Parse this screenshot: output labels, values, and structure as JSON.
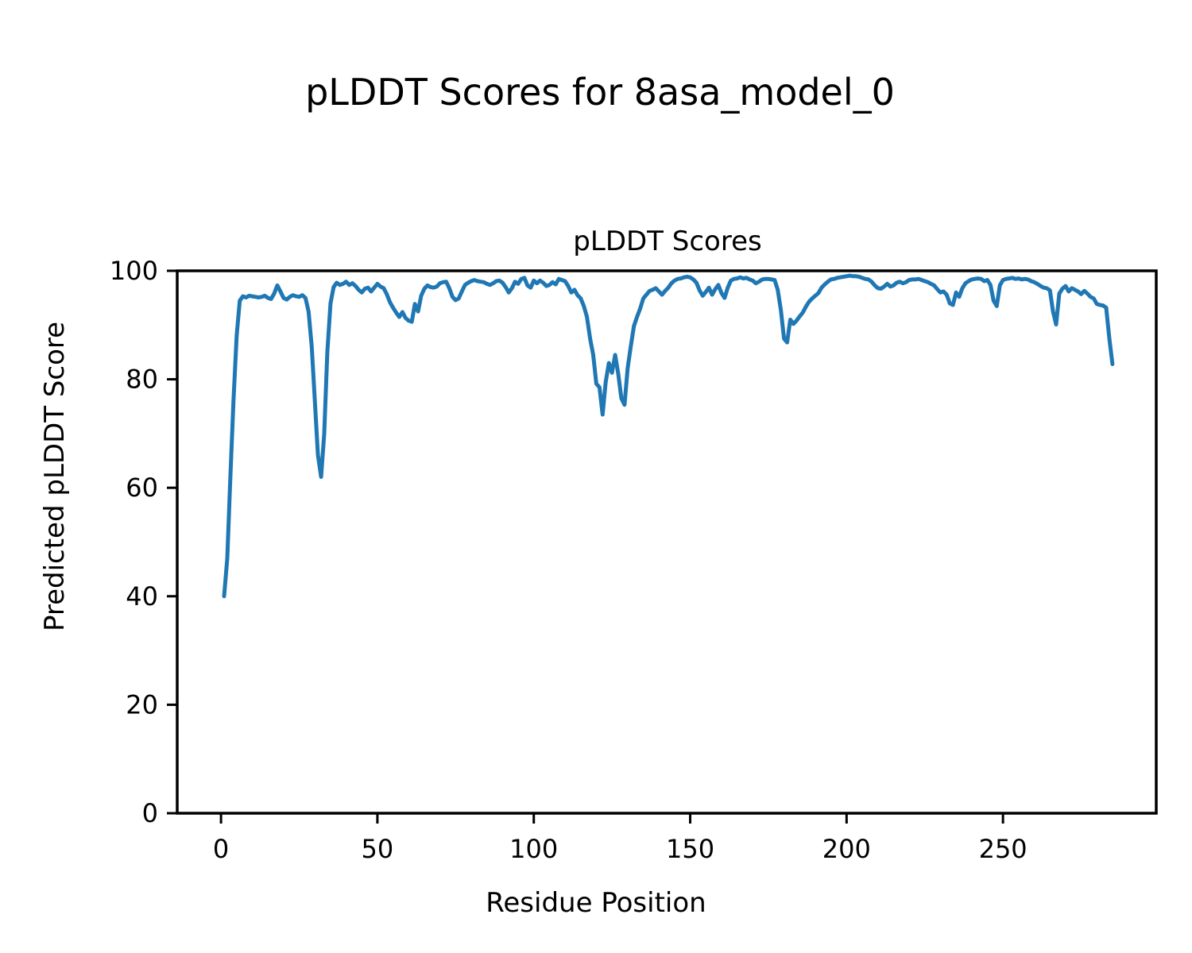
{
  "chart_data": {
    "type": "line",
    "figure_title": "pLDDT Scores for 8asa_model_0",
    "title": "pLDDT Scores",
    "xlabel": "Residue Position",
    "ylabel": "Predicted pLDDT Score",
    "x_ticks": [
      0,
      50,
      100,
      150,
      200,
      250
    ],
    "y_ticks": [
      0,
      20,
      40,
      60,
      80,
      100
    ],
    "xlim": [
      -14,
      299
    ],
    "ylim": [
      0,
      100
    ],
    "grid": false,
    "legend": "none",
    "line_color": "#1f77b4",
    "series": [
      {
        "name": "pLDDT",
        "points": [
          [
            1,
            40
          ],
          [
            2,
            47
          ],
          [
            3,
            62
          ],
          [
            4,
            76
          ],
          [
            5,
            88
          ],
          [
            6,
            94.5
          ],
          [
            7,
            95.3
          ],
          [
            8,
            95.1
          ],
          [
            9,
            95.4
          ],
          [
            10,
            95.3
          ],
          [
            11,
            95.2
          ],
          [
            12,
            95.1
          ],
          [
            13,
            95.2
          ],
          [
            14,
            95.4
          ],
          [
            15,
            95.0
          ],
          [
            16,
            94.8
          ],
          [
            17,
            95.8
          ],
          [
            18,
            97.3
          ],
          [
            19,
            96.2
          ],
          [
            20,
            95.0
          ],
          [
            21,
            94.7
          ],
          [
            22,
            95.2
          ],
          [
            23,
            95.5
          ],
          [
            24,
            95.3
          ],
          [
            25,
            95.2
          ],
          [
            26,
            95.5
          ],
          [
            27,
            95.0
          ],
          [
            28,
            92.5
          ],
          [
            29,
            86
          ],
          [
            30,
            76
          ],
          [
            31,
            66
          ],
          [
            32,
            62
          ],
          [
            33,
            70
          ],
          [
            34,
            85
          ],
          [
            35,
            94
          ],
          [
            36,
            97.0
          ],
          [
            37,
            97.8
          ],
          [
            38,
            97.4
          ],
          [
            39,
            97.6
          ],
          [
            40,
            98.0
          ],
          [
            41,
            97.4
          ],
          [
            42,
            97.7
          ],
          [
            43,
            97.2
          ],
          [
            44,
            96.5
          ],
          [
            45,
            96.0
          ],
          [
            46,
            96.7
          ],
          [
            47,
            96.9
          ],
          [
            48,
            96.2
          ],
          [
            49,
            96.9
          ],
          [
            50,
            97.6
          ],
          [
            51,
            97.1
          ],
          [
            52,
            96.8
          ],
          [
            53,
            95.7
          ],
          [
            54,
            94.2
          ],
          [
            55,
            93.2
          ],
          [
            56,
            92.3
          ],
          [
            57,
            91.5
          ],
          [
            58,
            92.4
          ],
          [
            59,
            91.3
          ],
          [
            60,
            90.8
          ],
          [
            61,
            90.6
          ],
          [
            62,
            93.9
          ],
          [
            63,
            92.5
          ],
          [
            64,
            95.4
          ],
          [
            65,
            96.7
          ],
          [
            66,
            97.3
          ],
          [
            67,
            97.0
          ],
          [
            68,
            96.9
          ],
          [
            69,
            97.1
          ],
          [
            70,
            97.7
          ],
          [
            71,
            97.9
          ],
          [
            72,
            98.0
          ],
          [
            73,
            96.8
          ],
          [
            74,
            95.2
          ],
          [
            75,
            94.6
          ],
          [
            76,
            94.9
          ],
          [
            77,
            96.2
          ],
          [
            78,
            97.4
          ],
          [
            79,
            97.8
          ],
          [
            80,
            98.1
          ],
          [
            81,
            98.3
          ],
          [
            82,
            98.1
          ],
          [
            83,
            98.0
          ],
          [
            84,
            97.9
          ],
          [
            85,
            97.6
          ],
          [
            86,
            97.4
          ],
          [
            87,
            97.7
          ],
          [
            88,
            98.1
          ],
          [
            89,
            98.2
          ],
          [
            90,
            97.8
          ],
          [
            91,
            97.0
          ],
          [
            92,
            96.0
          ],
          [
            93,
            96.8
          ],
          [
            94,
            98.0
          ],
          [
            95,
            97.6
          ],
          [
            96,
            98.5
          ],
          [
            97,
            98.7
          ],
          [
            98,
            97.3
          ],
          [
            99,
            96.9
          ],
          [
            100,
            98.2
          ],
          [
            101,
            97.7
          ],
          [
            102,
            98.2
          ],
          [
            103,
            97.8
          ],
          [
            104,
            97.2
          ],
          [
            105,
            97.4
          ],
          [
            106,
            97.9
          ],
          [
            107,
            97.5
          ],
          [
            108,
            98.5
          ],
          [
            109,
            98.3
          ],
          [
            110,
            98.1
          ],
          [
            111,
            97.2
          ],
          [
            112,
            96.0
          ],
          [
            113,
            96.5
          ],
          [
            114,
            95.5
          ],
          [
            115,
            94.9
          ],
          [
            116,
            93.5
          ],
          [
            117,
            91.5
          ],
          [
            118,
            87.5
          ],
          [
            119,
            84.5
          ],
          [
            120,
            79.2
          ],
          [
            121,
            78.5
          ],
          [
            122,
            73.5
          ],
          [
            123,
            79.5
          ],
          [
            124,
            83.0
          ],
          [
            125,
            81.2
          ],
          [
            126,
            84.5
          ],
          [
            127,
            81.0
          ],
          [
            128,
            76.5
          ],
          [
            129,
            75.3
          ],
          [
            130,
            82.0
          ],
          [
            131,
            86.0
          ],
          [
            132,
            89.8
          ],
          [
            133,
            91.5
          ],
          [
            134,
            93.0
          ],
          [
            135,
            94.9
          ],
          [
            136,
            95.6
          ],
          [
            137,
            96.3
          ],
          [
            138,
            96.5
          ],
          [
            139,
            96.8
          ],
          [
            140,
            96.2
          ],
          [
            141,
            95.6
          ],
          [
            142,
            96.3
          ],
          [
            143,
            96.9
          ],
          [
            144,
            97.7
          ],
          [
            145,
            98.2
          ],
          [
            146,
            98.5
          ],
          [
            147,
            98.6
          ],
          [
            148,
            98.8
          ],
          [
            149,
            98.9
          ],
          [
            150,
            98.8
          ],
          [
            151,
            98.4
          ],
          [
            152,
            97.8
          ],
          [
            153,
            96.4
          ],
          [
            154,
            95.4
          ],
          [
            155,
            96.1
          ],
          [
            156,
            96.9
          ],
          [
            157,
            95.6
          ],
          [
            158,
            96.6
          ],
          [
            159,
            97.4
          ],
          [
            160,
            95.9
          ],
          [
            161,
            95.0
          ],
          [
            162,
            96.9
          ],
          [
            163,
            98.2
          ],
          [
            164,
            98.5
          ],
          [
            165,
            98.6
          ],
          [
            166,
            98.8
          ],
          [
            167,
            98.6
          ],
          [
            168,
            98.7
          ],
          [
            169,
            98.4
          ],
          [
            170,
            98.2
          ],
          [
            171,
            97.7
          ],
          [
            172,
            98.0
          ],
          [
            173,
            98.4
          ],
          [
            174,
            98.5
          ],
          [
            175,
            98.5
          ],
          [
            176,
            98.4
          ],
          [
            177,
            98.3
          ],
          [
            178,
            96.5
          ],
          [
            179,
            92.7
          ],
          [
            180,
            87.5
          ],
          [
            181,
            86.8
          ],
          [
            182,
            91.0
          ],
          [
            183,
            90.2
          ],
          [
            184,
            90.8
          ],
          [
            185,
            91.6
          ],
          [
            186,
            92.3
          ],
          [
            187,
            93.4
          ],
          [
            188,
            94.3
          ],
          [
            189,
            94.9
          ],
          [
            190,
            95.4
          ],
          [
            191,
            95.9
          ],
          [
            192,
            96.9
          ],
          [
            193,
            97.5
          ],
          [
            194,
            98.0
          ],
          [
            195,
            98.4
          ],
          [
            196,
            98.5
          ],
          [
            197,
            98.7
          ],
          [
            198,
            98.8
          ],
          [
            199,
            98.9
          ],
          [
            200,
            99.0
          ],
          [
            201,
            99.1
          ],
          [
            202,
            99.0
          ],
          [
            203,
            99.0
          ],
          [
            204,
            98.9
          ],
          [
            205,
            98.7
          ],
          [
            206,
            98.5
          ],
          [
            207,
            98.4
          ],
          [
            208,
            98.0
          ],
          [
            209,
            97.3
          ],
          [
            210,
            96.8
          ],
          [
            211,
            96.7
          ],
          [
            212,
            97.1
          ],
          [
            213,
            97.6
          ],
          [
            214,
            97.1
          ],
          [
            215,
            97.3
          ],
          [
            216,
            97.8
          ],
          [
            217,
            98.0
          ],
          [
            218,
            97.7
          ],
          [
            219,
            97.9
          ],
          [
            220,
            98.3
          ],
          [
            221,
            98.4
          ],
          [
            222,
            98.4
          ],
          [
            223,
            98.5
          ],
          [
            224,
            98.3
          ],
          [
            225,
            98.1
          ],
          [
            226,
            97.9
          ],
          [
            227,
            97.6
          ],
          [
            228,
            97.3
          ],
          [
            229,
            96.6
          ],
          [
            230,
            96.0
          ],
          [
            231,
            96.2
          ],
          [
            232,
            95.6
          ],
          [
            233,
            94.0
          ],
          [
            234,
            93.7
          ],
          [
            235,
            96.0
          ],
          [
            236,
            95.2
          ],
          [
            237,
            96.8
          ],
          [
            238,
            97.7
          ],
          [
            239,
            98.1
          ],
          [
            240,
            98.4
          ],
          [
            241,
            98.5
          ],
          [
            242,
            98.6
          ],
          [
            243,
            98.5
          ],
          [
            244,
            98.1
          ],
          [
            245,
            98.3
          ],
          [
            246,
            97.4
          ],
          [
            247,
            94.5
          ],
          [
            248,
            93.5
          ],
          [
            249,
            97.3
          ],
          [
            250,
            98.3
          ],
          [
            251,
            98.5
          ],
          [
            252,
            98.6
          ],
          [
            253,
            98.7
          ],
          [
            254,
            98.5
          ],
          [
            255,
            98.6
          ],
          [
            256,
            98.4
          ],
          [
            257,
            98.5
          ],
          [
            258,
            98.4
          ],
          [
            259,
            98.1
          ],
          [
            260,
            97.9
          ],
          [
            261,
            97.6
          ],
          [
            262,
            97.2
          ],
          [
            263,
            96.9
          ],
          [
            264,
            96.8
          ],
          [
            265,
            96.4
          ],
          [
            266,
            92.5
          ],
          [
            267,
            90.1
          ],
          [
            268,
            95.8
          ],
          [
            269,
            96.7
          ],
          [
            270,
            97.2
          ],
          [
            271,
            96.2
          ],
          [
            272,
            96.8
          ],
          [
            273,
            96.5
          ],
          [
            274,
            96.2
          ],
          [
            275,
            95.7
          ],
          [
            276,
            96.3
          ],
          [
            277,
            95.8
          ],
          [
            278,
            95.2
          ],
          [
            279,
            94.9
          ],
          [
            280,
            93.9
          ],
          [
            281,
            93.7
          ],
          [
            282,
            93.6
          ],
          [
            283,
            93.2
          ],
          [
            284,
            87.5
          ],
          [
            285,
            82.8
          ]
        ]
      }
    ]
  }
}
